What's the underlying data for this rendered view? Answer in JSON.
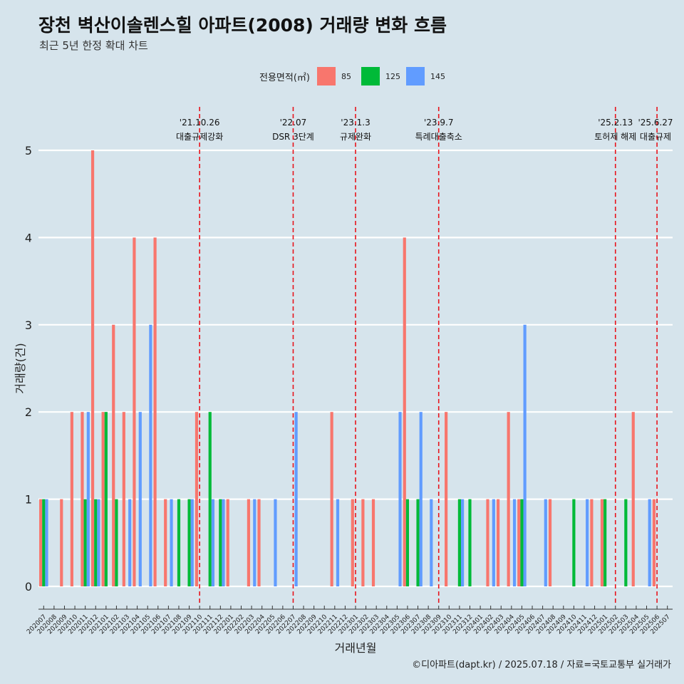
{
  "header": {
    "title": "장천 벽산이솔렌스힐 아파트(2008) 거래량 변화 흐름",
    "subtitle": "최근 5년 한정 확대 차트"
  },
  "legend": {
    "title": "전용면적(㎡)",
    "items": [
      {
        "label": "85",
        "color": "#f8766d"
      },
      {
        "label": "125",
        "color": "#00ba38"
      },
      {
        "label": "145",
        "color": "#619cff"
      }
    ]
  },
  "caption": "©디아파트(dapt.kr) / 2025.07.18 / 자료=국토교통부 실거래가",
  "chart_data": {
    "type": "bar",
    "xlabel": "거래년월",
    "ylabel": "거래량(건)",
    "ylim": [
      0,
      5
    ],
    "yticks": [
      0,
      1,
      2,
      3,
      4,
      5
    ],
    "grid": true,
    "legend_position": "top",
    "categories": [
      "202007",
      "202008",
      "202009",
      "202010",
      "202011",
      "202012",
      "202101",
      "202102",
      "202103",
      "202104",
      "202105",
      "202106",
      "202107",
      "202108",
      "202109",
      "202110",
      "202111",
      "202112",
      "202201",
      "202202",
      "202203",
      "202204",
      "202205",
      "202206",
      "202207",
      "202208",
      "202209",
      "202210",
      "202211",
      "202212",
      "202301",
      "202302",
      "202303",
      "202304",
      "202305",
      "202306",
      "202307",
      "202308",
      "202309",
      "202310",
      "202311",
      "202312",
      "202401",
      "202402",
      "202403",
      "202404",
      "202405",
      "202406",
      "202407",
      "202408",
      "202409",
      "202410",
      "202411",
      "202412",
      "202501",
      "202502",
      "202503",
      "202504",
      "202505",
      "202506",
      "202507"
    ],
    "series": [
      {
        "name": "85",
        "color": "#f8766d",
        "values": [
          1,
          0,
          1,
          2,
          2,
          5,
          2,
          3,
          2,
          4,
          0,
          4,
          1,
          0,
          0,
          2,
          0,
          0,
          1,
          0,
          1,
          1,
          0,
          0,
          0,
          0,
          0,
          0,
          2,
          0,
          1,
          1,
          1,
          0,
          0,
          4,
          0,
          0,
          0,
          2,
          0,
          0,
          0,
          1,
          1,
          2,
          1,
          0,
          0,
          1,
          0,
          0,
          0,
          1,
          1,
          0,
          0,
          2,
          0,
          1,
          0
        ]
      },
      {
        "name": "125",
        "color": "#00ba38",
        "values": [
          1,
          0,
          0,
          0,
          1,
          1,
          2,
          1,
          0,
          0,
          0,
          0,
          0,
          1,
          1,
          0,
          2,
          1,
          0,
          0,
          0,
          0,
          0,
          0,
          0,
          0,
          0,
          0,
          0,
          0,
          0,
          0,
          0,
          0,
          0,
          1,
          1,
          0,
          0,
          0,
          1,
          1,
          0,
          0,
          0,
          0,
          1,
          0,
          0,
          0,
          0,
          1,
          0,
          0,
          1,
          0,
          1,
          0,
          0,
          0,
          0
        ]
      },
      {
        "name": "145",
        "color": "#619cff",
        "values": [
          1,
          0,
          0,
          0,
          2,
          1,
          0,
          0,
          1,
          2,
          3,
          0,
          1,
          0,
          1,
          0,
          1,
          1,
          0,
          0,
          1,
          0,
          1,
          0,
          2,
          0,
          0,
          0,
          1,
          0,
          0,
          0,
          0,
          0,
          2,
          0,
          2,
          1,
          0,
          0,
          1,
          0,
          0,
          1,
          0,
          1,
          3,
          0,
          1,
          0,
          0,
          0,
          1,
          0,
          0,
          0,
          0,
          0,
          1,
          0,
          0
        ]
      }
    ],
    "annotations": [
      {
        "date": "'21.10.26",
        "label": "대출규제강화",
        "x": "202110"
      },
      {
        "date": "'22.07",
        "label": "DSR 3단계",
        "x": "202207"
      },
      {
        "date": "'23.1.3",
        "label": "규제완화",
        "x": "202301"
      },
      {
        "date": "'23.9.7",
        "label": "특례대출축소",
        "x": "202309"
      },
      {
        "date": "'25.2.13",
        "label": "토허제 해제",
        "x": "202502"
      },
      {
        "date": "'25.6.27",
        "label": "대출규제",
        "x": "202506"
      }
    ]
  }
}
